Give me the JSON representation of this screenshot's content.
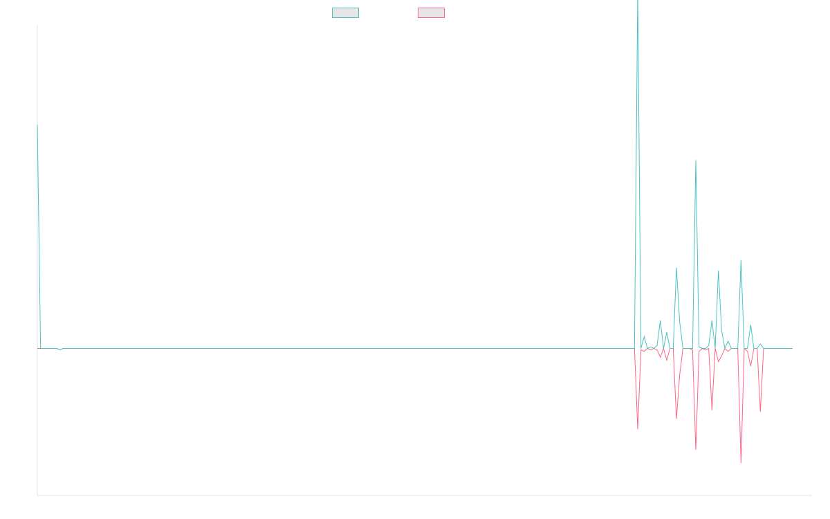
{
  "colors": {
    "series_a": "#4bc0c0",
    "series_b": "#ff6384",
    "axis": "#e5e5e5",
    "legend_fill": "#e6e6e6"
  },
  "legend": {
    "placement": "top-center",
    "items": [
      {
        "label": "",
        "color": "#4bc0c0"
      },
      {
        "label": "",
        "color": "#ff6384"
      }
    ]
  },
  "chart_data": {
    "type": "line",
    "title": "",
    "xlabel": "",
    "ylabel": "",
    "grid": false,
    "ylim": [
      -1,
      2.2
    ],
    "x_count": 241,
    "series": [
      {
        "color": "#4bc0c0",
        "values": [
          1.52,
          0,
          0,
          0,
          0,
          0,
          0,
          -0.01,
          0,
          0,
          0,
          0,
          0,
          0,
          0,
          0,
          0,
          0,
          0,
          0,
          0,
          0,
          0,
          0,
          0,
          0,
          0,
          0,
          0,
          0,
          0,
          0,
          0,
          0,
          0,
          0,
          0,
          0,
          0,
          0,
          0,
          0,
          0,
          0,
          0,
          0,
          0,
          0,
          0,
          0,
          0,
          0,
          0,
          0,
          0,
          0,
          0,
          0,
          0,
          0,
          0,
          0,
          0,
          0,
          0,
          0,
          0,
          0,
          0,
          0,
          0,
          0,
          0,
          0,
          0,
          0,
          0,
          0,
          0,
          0,
          0,
          0,
          0,
          0,
          0,
          0,
          0,
          0,
          0,
          0,
          0,
          0,
          0,
          0,
          0,
          0,
          0,
          0,
          0,
          0,
          0,
          0,
          0,
          0,
          0,
          0,
          0,
          0,
          0,
          0,
          0,
          0,
          0,
          0,
          0,
          0,
          0,
          0,
          0,
          0,
          0,
          0,
          0,
          0,
          0,
          0,
          0,
          0,
          0,
          0,
          0,
          0,
          0,
          0,
          0,
          0,
          0,
          0,
          0,
          0,
          0,
          0,
          0,
          0,
          0,
          0,
          0,
          0,
          0,
          0,
          0,
          0,
          0,
          0,
          0,
          0,
          0,
          0,
          0,
          0,
          0,
          0,
          0,
          0,
          0,
          0,
          0,
          0,
          0,
          0,
          0,
          0,
          0,
          0,
          0,
          0,
          0,
          0,
          0,
          0,
          0,
          0,
          0,
          0,
          0,
          0,
          2.43,
          0,
          0.08,
          0,
          0.01,
          0,
          0.02,
          0.19,
          0,
          0.11,
          0,
          0,
          0.55,
          0.18,
          0,
          0,
          0,
          0,
          1.28,
          0.01,
          0,
          0,
          0.02,
          0.19,
          0,
          0.53,
          0.12,
          0,
          0.05,
          0,
          0,
          0,
          0.6,
          0,
          0,
          0.16,
          0,
          0,
          0.03,
          0,
          0,
          0,
          0,
          0,
          0,
          0,
          0,
          0,
          0
        ]
      },
      {
        "color": "#ff6384",
        "values": [
          0,
          0,
          0,
          0,
          0,
          0,
          0,
          -0.01,
          0,
          0,
          0,
          0,
          0,
          0,
          0,
          0,
          0,
          0,
          0,
          0,
          0,
          0,
          0,
          0,
          0,
          0,
          0,
          0,
          0,
          0,
          0,
          0,
          0,
          0,
          0,
          0,
          0,
          0,
          0,
          0,
          0,
          0,
          0,
          0,
          0,
          0,
          0,
          0,
          0,
          0,
          0,
          0,
          0,
          0,
          0,
          0,
          0,
          0,
          0,
          0,
          0,
          0,
          0,
          0,
          0,
          0,
          0,
          0,
          0,
          0,
          0,
          0,
          0,
          0,
          0,
          0,
          0,
          0,
          0,
          0,
          0,
          0,
          0,
          0,
          0,
          0,
          0,
          0,
          0,
          0,
          0,
          0,
          0,
          0,
          0,
          0,
          0,
          0,
          0,
          0,
          0,
          0,
          0,
          0,
          0,
          0,
          0,
          0,
          0,
          0,
          0,
          0,
          0,
          0,
          0,
          0,
          0,
          0,
          0,
          0,
          0,
          0,
          0,
          0,
          0,
          0,
          0,
          0,
          0,
          0,
          0,
          0,
          0,
          0,
          0,
          0,
          0,
          0,
          0,
          0,
          0,
          0,
          0,
          0,
          0,
          0,
          0,
          0,
          0,
          0,
          0,
          0,
          0,
          0,
          0,
          0,
          0,
          0,
          0,
          0,
          0,
          0,
          0,
          0,
          0,
          0,
          0,
          0,
          0,
          0,
          0,
          0,
          0,
          0,
          0,
          0,
          0,
          0,
          0,
          0,
          0,
          0,
          0,
          0,
          0,
          0,
          -0.55,
          -0.01,
          -0.02,
          0,
          -0.01,
          0,
          -0.01,
          -0.06,
          0,
          -0.08,
          0,
          0,
          -0.48,
          -0.18,
          0,
          0,
          0,
          -0.01,
          -0.69,
          -0.02,
          0,
          -0.01,
          0,
          -0.42,
          0,
          -0.09,
          -0.05,
          0,
          -0.02,
          0,
          0,
          0,
          -0.78,
          0,
          -0.02,
          -0.12,
          0,
          0,
          -0.43,
          0,
          0,
          0,
          0,
          0,
          0,
          0,
          0,
          0,
          0
        ]
      }
    ]
  }
}
